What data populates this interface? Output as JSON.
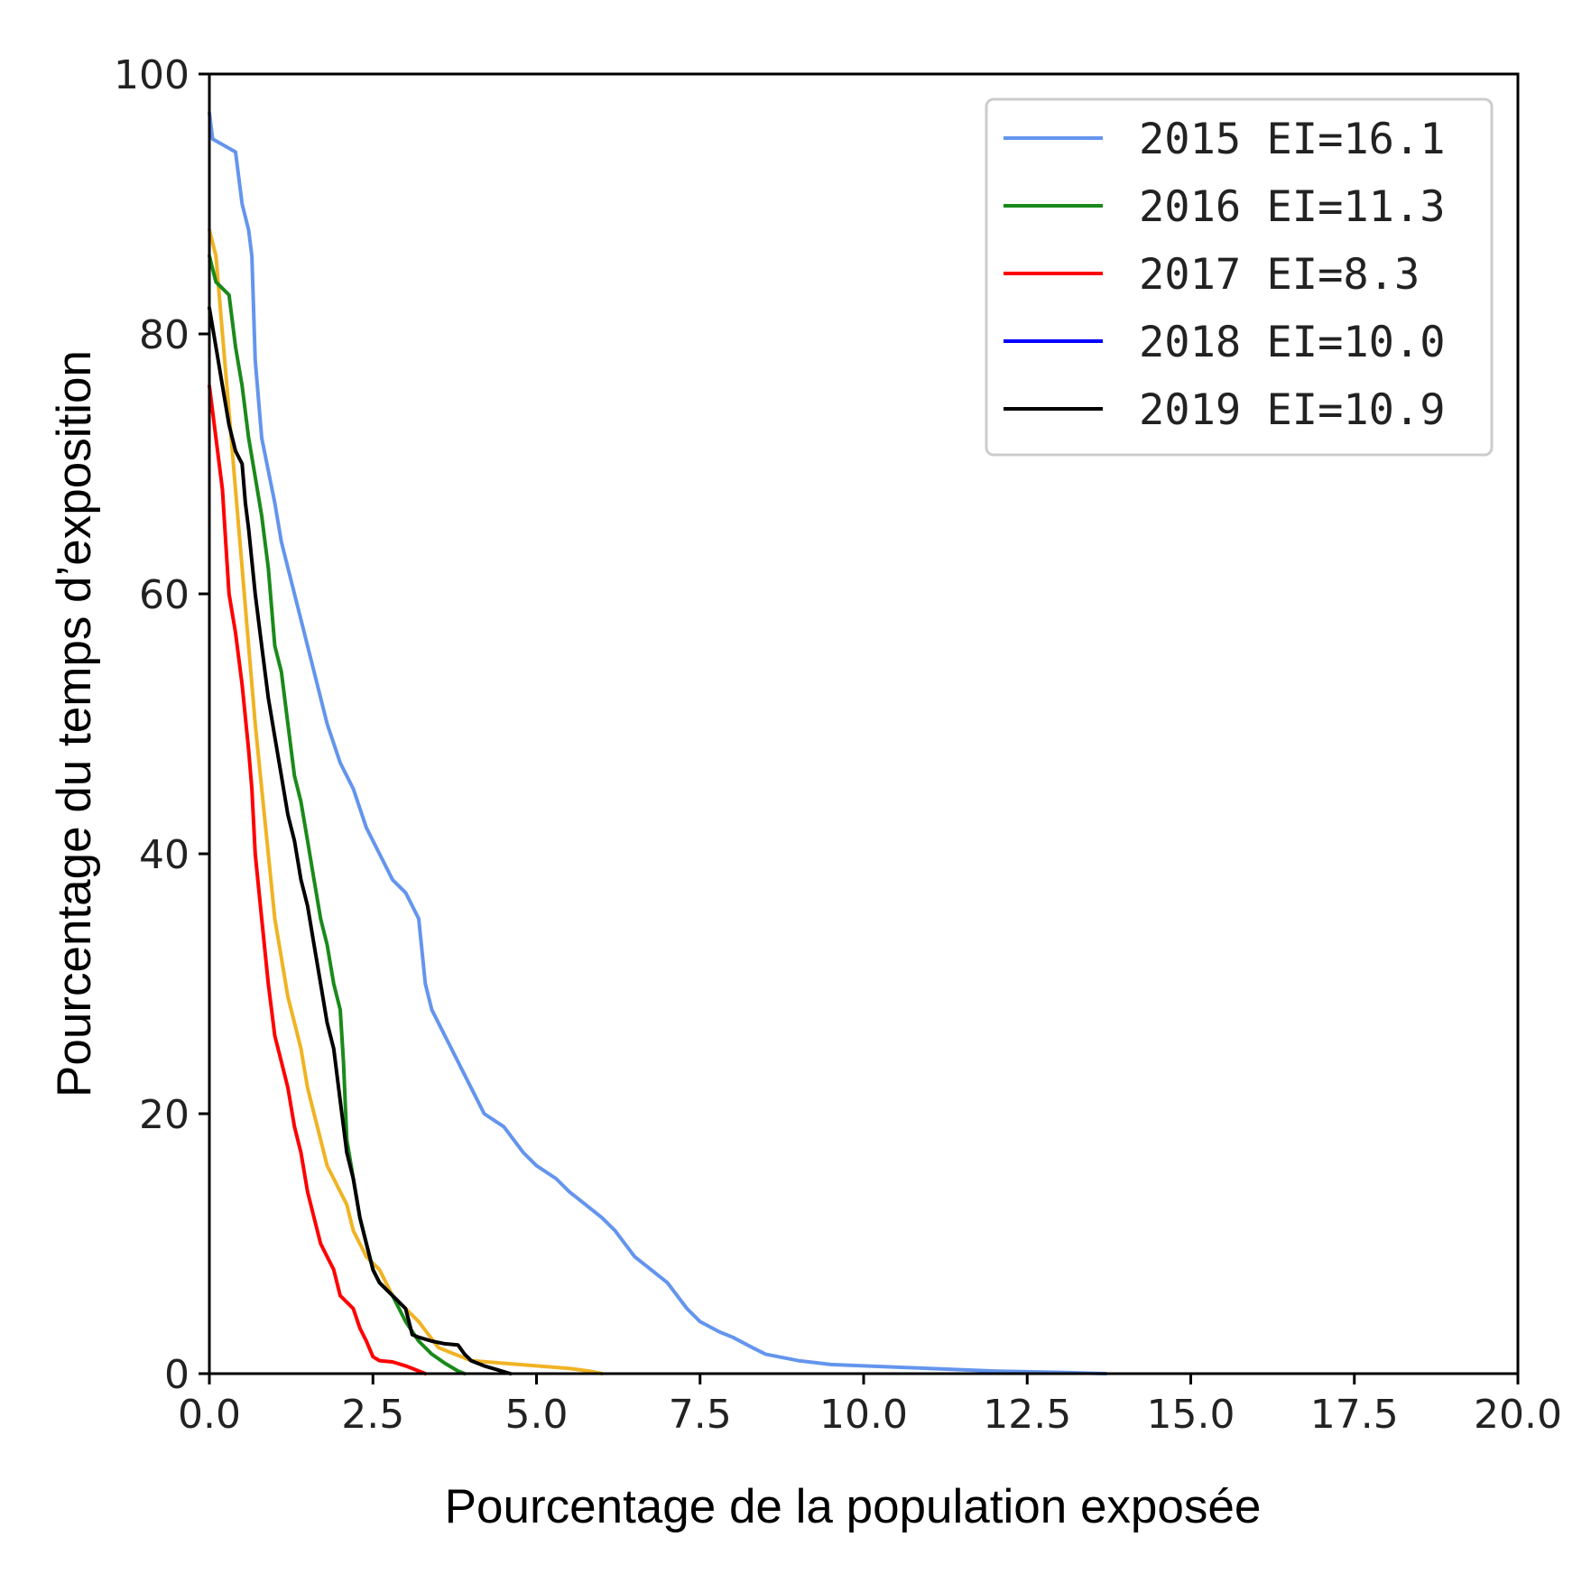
{
  "chart_data": {
    "type": "line",
    "title": "",
    "xlabel": "Pourcentage de la population exposée",
    "ylabel": "Pourcentage du temps d’exposition",
    "xlim": [
      0,
      20
    ],
    "ylim": [
      0,
      100
    ],
    "xticks": [
      "0.0",
      "2.5",
      "5.0",
      "7.5",
      "10.0",
      "12.5",
      "15.0",
      "17.5",
      "20.0"
    ],
    "yticks": [
      "0",
      "20",
      "40",
      "60",
      "80",
      "100"
    ],
    "grid": false,
    "legend_position": "top-right",
    "series": [
      {
        "name": "2015 EI=16.1",
        "color": "#6495ed",
        "x": [
          0.0,
          0.05,
          0.4,
          0.5,
          0.6,
          0.65,
          0.7,
          0.8,
          1.0,
          1.1,
          1.3,
          1.5,
          1.7,
          1.8,
          2.0,
          2.2,
          2.4,
          2.6,
          2.8,
          3.0,
          3.1,
          3.2,
          3.3,
          3.4,
          3.6,
          3.8,
          4.0,
          4.1,
          4.2,
          4.5,
          4.8,
          5.0,
          5.3,
          5.5,
          6.0,
          6.2,
          6.5,
          7.0,
          7.3,
          7.5,
          7.8,
          8.0,
          8.3,
          8.5,
          9.0,
          9.5,
          10.0,
          11.0,
          12.0,
          13.0,
          13.7
        ],
        "y": [
          97,
          95,
          94,
          90,
          88,
          86,
          78,
          72,
          67,
          64,
          60,
          56,
          52,
          50,
          47,
          45,
          42,
          40,
          38,
          37,
          36,
          35,
          30,
          28,
          26,
          24,
          22,
          21,
          20,
          19,
          17,
          16,
          15,
          14,
          12,
          11,
          9,
          7,
          5,
          4,
          3.2,
          2.8,
          2.0,
          1.5,
          1.0,
          0.7,
          0.6,
          0.4,
          0.2,
          0.1,
          0.0
        ]
      },
      {
        "name": "2016 EI=11.3",
        "color": "#1a8a1a",
        "x": [
          0.0,
          0.1,
          0.3,
          0.4,
          0.5,
          0.6,
          0.7,
          0.8,
          0.9,
          1.0,
          1.1,
          1.2,
          1.3,
          1.4,
          1.5,
          1.6,
          1.7,
          1.8,
          1.9,
          2.0,
          2.05,
          2.1,
          2.2,
          2.3,
          2.4,
          2.5,
          2.6,
          2.8,
          3.0,
          3.2,
          3.4,
          3.6,
          3.8,
          3.9
        ],
        "y": [
          86,
          84,
          83,
          79,
          76,
          72,
          69,
          66,
          62,
          56,
          54,
          50,
          46,
          44,
          41,
          38,
          35,
          33,
          30,
          28,
          24,
          18,
          15,
          12,
          10,
          8,
          7,
          6,
          4,
          2.5,
          1.5,
          0.8,
          0.2,
          0.0
        ]
      },
      {
        "name": "2017 EI=8.3",
        "color": "#ff0000",
        "x": [
          0.0,
          0.1,
          0.2,
          0.25,
          0.3,
          0.4,
          0.5,
          0.6,
          0.65,
          0.7,
          0.8,
          0.9,
          1.0,
          1.1,
          1.2,
          1.3,
          1.4,
          1.5,
          1.6,
          1.7,
          1.8,
          1.9,
          2.0,
          2.1,
          2.2,
          2.3,
          2.4,
          2.5,
          2.6,
          2.8,
          3.0,
          3.1,
          3.2,
          3.3
        ],
        "y": [
          76,
          72,
          68,
          64,
          60,
          57,
          53,
          48,
          45,
          40,
          35,
          30,
          26,
          24,
          22,
          19,
          17,
          14,
          12,
          10,
          9,
          8,
          6,
          5.5,
          5.0,
          3.5,
          2.5,
          1.3,
          1.0,
          0.9,
          0.6,
          0.4,
          0.2,
          0.0
        ]
      },
      {
        "name": "2018 EI=10.0",
        "color": "#0000ff",
        "x": [
          0.0,
          0.1,
          0.2,
          0.3,
          0.4,
          0.5,
          0.6,
          0.7,
          0.8,
          0.9,
          1.0,
          1.1,
          1.2,
          1.3,
          1.4,
          1.5,
          1.6,
          1.7,
          1.8,
          1.9,
          2.0,
          2.1,
          2.2,
          2.4,
          2.6,
          2.8,
          3.0,
          3.2,
          3.5,
          4.0,
          4.5,
          5.0,
          5.5,
          5.8,
          6.0
        ],
        "y": [
          88,
          86,
          80,
          74,
          68,
          62,
          56,
          50,
          45,
          40,
          35,
          32,
          29,
          27,
          25,
          22,
          20,
          18,
          16,
          15,
          14,
          13,
          11,
          9,
          8,
          6,
          5,
          4,
          2,
          1,
          0.8,
          0.6,
          0.4,
          0.2,
          0.0
        ]
      },
      {
        "name": "2019 EI=10.9",
        "color": "#000000",
        "x": [
          0.0,
          0.1,
          0.2,
          0.3,
          0.4,
          0.5,
          0.55,
          0.6,
          0.7,
          0.8,
          0.9,
          1.0,
          1.1,
          1.2,
          1.3,
          1.4,
          1.5,
          1.6,
          1.7,
          1.8,
          1.9,
          2.0,
          2.1,
          2.2,
          2.3,
          2.4,
          2.5,
          2.6,
          2.7,
          2.8,
          3.0,
          3.1,
          3.2,
          3.4,
          3.6,
          3.8,
          3.9,
          4.0,
          4.2,
          4.4,
          4.6
        ],
        "y": [
          82,
          79,
          76,
          73,
          71,
          70,
          67,
          65,
          60,
          56,
          52,
          49,
          46,
          43,
          41,
          38,
          36,
          33,
          30,
          27,
          25,
          21,
          17,
          15,
          12,
          10,
          8,
          7,
          6.5,
          6,
          5,
          3,
          2.8,
          2.5,
          2.3,
          2.2,
          1.5,
          1.0,
          0.6,
          0.3,
          0.0
        ]
      }
    ]
  }
}
